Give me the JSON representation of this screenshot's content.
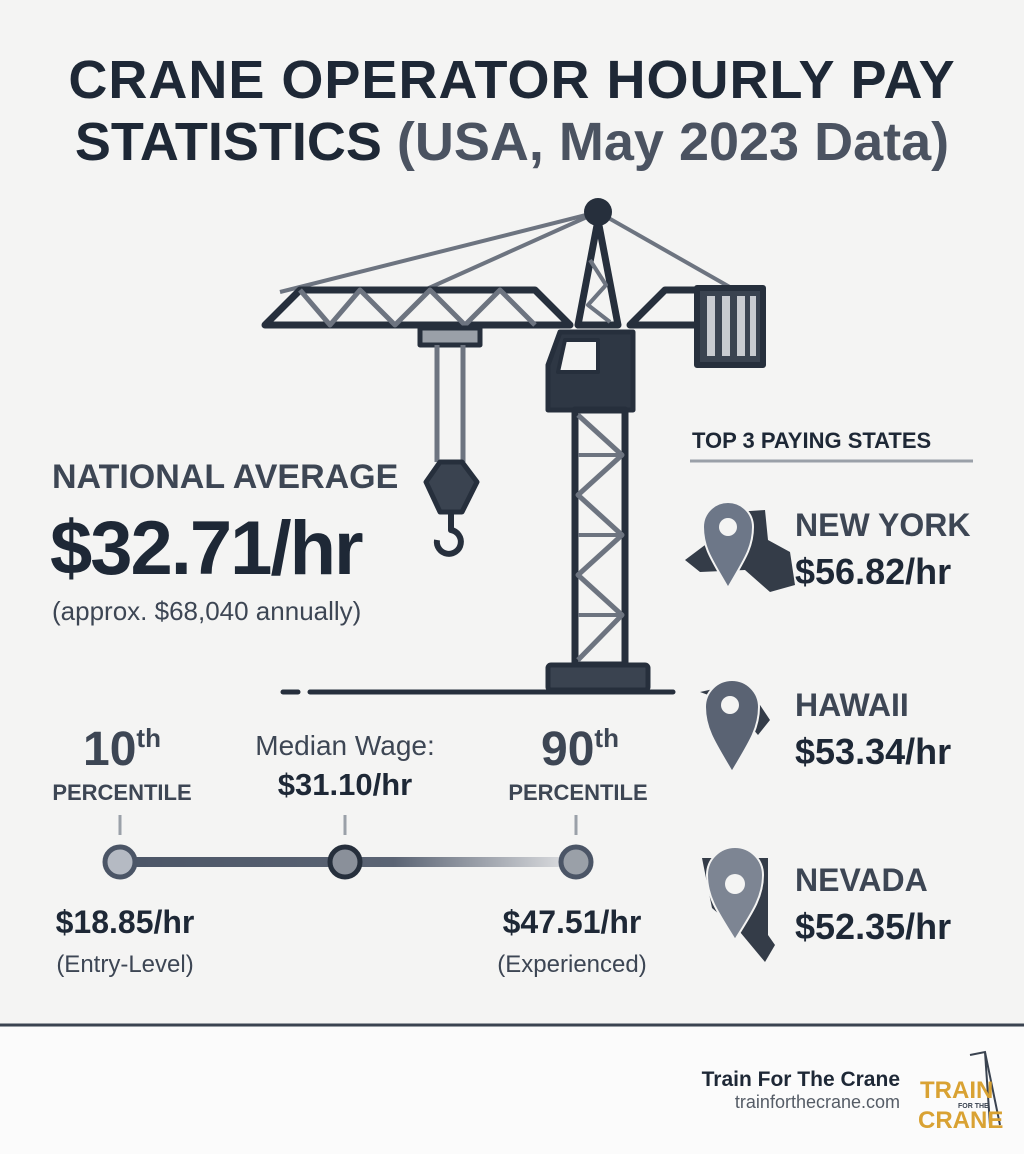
{
  "title": {
    "line1": "CRANE OPERATOR HOURLY PAY",
    "line2_bold": "STATISTICS",
    "line2_light": "(USA, May 2023 Data)"
  },
  "national_average": {
    "label": "NATIONAL AVERAGE",
    "value": "$32.71/hr",
    "annual": "(approx. $68,040 annually)"
  },
  "percentiles": {
    "p10": {
      "number": "10",
      "suffix": "th",
      "label": "PERCENTILE",
      "value": "$18.85/hr",
      "note": "(Entry-Level)"
    },
    "median": {
      "label": "Median Wage:",
      "value": "$31.10/hr"
    },
    "p90": {
      "number": "90",
      "suffix": "th",
      "label": "PERCENTILE",
      "value": "$47.51/hr",
      "note": "(Experienced)"
    }
  },
  "top_states": {
    "heading": "TOP 3 PAYING STATES",
    "states": [
      {
        "name": "NEW YORK",
        "value": "$56.82/hr"
      },
      {
        "name": "HAWAII",
        "value": "$53.34/hr"
      },
      {
        "name": "NEVADA",
        "value": "$52.35/hr"
      }
    ]
  },
  "footer": {
    "brand": "Train For The Crane",
    "url": "trainforthecrane.com",
    "logo": [
      "TRAIN",
      "FOR THE",
      "CRANE"
    ]
  }
}
